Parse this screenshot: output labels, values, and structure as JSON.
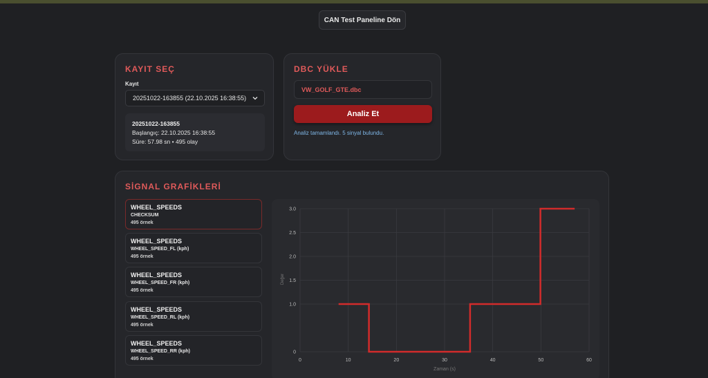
{
  "header": {
    "back_label": "CAN Test Paneline Dön"
  },
  "kayit": {
    "title": "KAYIT SEÇ",
    "field_label": "Kayıt",
    "selected": "20251022-163855 (22.10.2025 16:38:55)",
    "info_name": "20251022-163855",
    "info_start": "Başlangıç: 22.10.2025 16:38:55",
    "info_duration": "Süre: 57.98 sn • 495 olay"
  },
  "dbc": {
    "title": "DBC YÜKLE",
    "file_name": "VW_GOLF_GTE.dbc",
    "analyze_label": "Analiz Et",
    "status": "Analiz tamamlandı. 5 sinyal bulundu."
  },
  "signals": {
    "title": "SİGNAL GRAFİKLERİ",
    "items": [
      {
        "message": "WHEEL_SPEEDS",
        "signal": "CHECKSUM",
        "count": "495 örnek",
        "active": true
      },
      {
        "message": "WHEEL_SPEEDS",
        "signal": "WHEEL_SPEED_FL (kph)",
        "count": "495 örnek",
        "active": false
      },
      {
        "message": "WHEEL_SPEEDS",
        "signal": "WHEEL_SPEED_FR (kph)",
        "count": "495 örnek",
        "active": false
      },
      {
        "message": "WHEEL_SPEEDS",
        "signal": "WHEEL_SPEED_RL (kph)",
        "count": "495 örnek",
        "active": false
      },
      {
        "message": "WHEEL_SPEEDS",
        "signal": "WHEEL_SPEED_RR (kph)",
        "count": "495 örnek",
        "active": false
      }
    ]
  },
  "colors": {
    "accent": "#e05a5a",
    "button": "#9c1b1d",
    "line": "#d22b2b",
    "status": "#7fb6e6"
  },
  "chart_data": {
    "type": "line",
    "xlabel": "Zaman (s)",
    "ylabel": "Değer",
    "xlim": [
      0,
      60
    ],
    "ylim": [
      0,
      3
    ],
    "x_ticks": [
      0,
      10,
      20,
      30,
      40,
      50,
      60
    ],
    "y_ticks": [
      "0",
      "1.0",
      "1.5",
      "2.0",
      "2.5",
      "3.0"
    ],
    "y_tick_values": [
      0,
      1.0,
      1.5,
      2.0,
      2.5,
      3.0
    ],
    "step": true,
    "series": [
      {
        "x": [
          8,
          14.3,
          14.3,
          35.3,
          35.3,
          49.9,
          49.9,
          57
        ],
        "y": [
          1,
          1,
          0,
          0,
          1,
          1,
          3,
          3
        ]
      }
    ],
    "grid": true
  }
}
